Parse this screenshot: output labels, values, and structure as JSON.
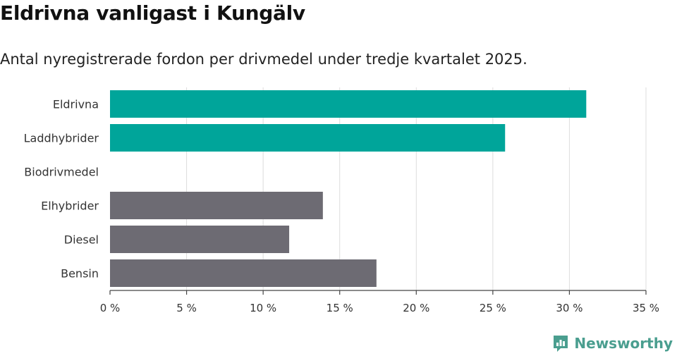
{
  "title": "Eldrivna vanligast i Kungälv",
  "subtitle": "Antal nyregistrerade fordon per drivmedel under tredje kvartalet 2025.",
  "brand": {
    "name": "Newsworthy",
    "icon": "newsworthy-logo-icon",
    "color": "#4a9e8f"
  },
  "colors": {
    "highlight": "#00a59a",
    "other": "#6d6b73",
    "grid": "#dddddd",
    "axis": "#444444"
  },
  "chart_data": {
    "type": "bar",
    "orientation": "horizontal",
    "categories": [
      "Eldrivna",
      "Laddhybrider",
      "Biodrivmedel",
      "Elhybrider",
      "Diesel",
      "Bensin"
    ],
    "values": [
      31.1,
      25.8,
      0,
      13.9,
      11.7,
      17.4
    ],
    "highlighted": [
      true,
      true,
      false,
      false,
      false,
      false
    ],
    "xlim": [
      0,
      35
    ],
    "xticks": [
      0,
      5,
      10,
      15,
      20,
      25,
      30,
      35
    ],
    "xtick_labels": [
      "0 %",
      "5 %",
      "10 %",
      "15 %",
      "20 %",
      "25 %",
      "30 %",
      "35 %"
    ],
    "unit": "%",
    "grid": true
  }
}
